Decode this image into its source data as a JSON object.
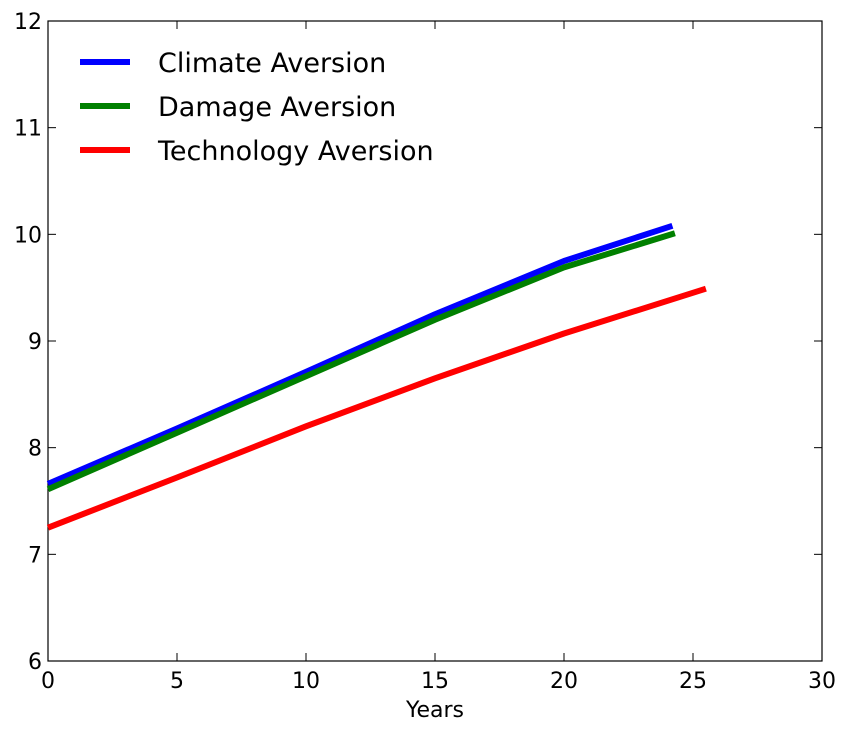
{
  "chart_data": {
    "type": "line",
    "title": "",
    "xlabel": "Years",
    "ylabel": "",
    "xlim": [
      0,
      30
    ],
    "ylim": [
      6,
      12
    ],
    "xticks": [
      "0",
      "5",
      "10",
      "15",
      "20",
      "25",
      "30"
    ],
    "yticks": [
      "6",
      "7",
      "8",
      "9",
      "10",
      "11",
      "12"
    ],
    "grid": false,
    "legend_position": "top-left",
    "series": [
      {
        "name": "Climate Aversion",
        "color": "#0000ff",
        "x": [
          0,
          5,
          10,
          15,
          20,
          24.2
        ],
        "y": [
          7.66,
          8.18,
          8.71,
          9.25,
          9.75,
          10.08
        ]
      },
      {
        "name": "Damage Aversion",
        "color": "#008000",
        "x": [
          0,
          5,
          10,
          15,
          20,
          24.3
        ],
        "y": [
          7.61,
          8.14,
          8.67,
          9.2,
          9.69,
          10.01
        ]
      },
      {
        "name": "Technology Aversion",
        "color": "#ff0000",
        "x": [
          0,
          5,
          10,
          15,
          20,
          25.5
        ],
        "y": [
          7.25,
          7.72,
          8.2,
          8.65,
          9.07,
          9.49
        ]
      }
    ]
  }
}
